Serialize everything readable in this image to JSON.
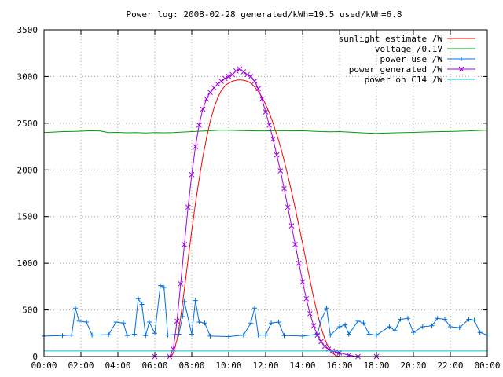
{
  "chart_data": {
    "type": "line",
    "title": "Power log: 2008-02-28 generated/kWh=19.5 used/kWh=6.8",
    "xlabel": "",
    "ylabel": "",
    "xlim": [
      0,
      24
    ],
    "ylim": [
      0,
      3500
    ],
    "x_ticks": [
      {
        "value": 0,
        "label": "00:00"
      },
      {
        "value": 2,
        "label": "02:00"
      },
      {
        "value": 4,
        "label": "04:00"
      },
      {
        "value": 6,
        "label": "06:00"
      },
      {
        "value": 8,
        "label": "08:00"
      },
      {
        "value": 10,
        "label": "10:00"
      },
      {
        "value": 12,
        "label": "12:00"
      },
      {
        "value": 14,
        "label": "14:00"
      },
      {
        "value": 16,
        "label": "16:00"
      },
      {
        "value": 18,
        "label": "18:00"
      },
      {
        "value": 20,
        "label": "20:00"
      },
      {
        "value": 22,
        "label": "22:00"
      },
      {
        "value": 24,
        "label": "00:00"
      }
    ],
    "y_ticks": [
      {
        "value": 0,
        "label": "0"
      },
      {
        "value": 500,
        "label": "500"
      },
      {
        "value": 1000,
        "label": "1000"
      },
      {
        "value": 1500,
        "label": "1500"
      },
      {
        "value": 2000,
        "label": "2000"
      },
      {
        "value": 2500,
        "label": "2500"
      },
      {
        "value": 3000,
        "label": "3000"
      },
      {
        "value": 3500,
        "label": "3500"
      }
    ],
    "grid": true,
    "legend_position": "top-right",
    "series": [
      {
        "name": "sunlight estimate /W",
        "color": "#ff0000",
        "marker": "none",
        "points": [
          [
            6.9,
            0
          ],
          [
            7.0,
            40
          ],
          [
            7.2,
            180
          ],
          [
            7.4,
            420
          ],
          [
            7.6,
            720
          ],
          [
            7.8,
            1040
          ],
          [
            8.0,
            1350
          ],
          [
            8.2,
            1640
          ],
          [
            8.4,
            1900
          ],
          [
            8.6,
            2140
          ],
          [
            8.8,
            2340
          ],
          [
            9.0,
            2520
          ],
          [
            9.2,
            2660
          ],
          [
            9.4,
            2770
          ],
          [
            9.6,
            2850
          ],
          [
            9.8,
            2900
          ],
          [
            10.0,
            2930
          ],
          [
            10.2,
            2950
          ],
          [
            10.4,
            2960
          ],
          [
            10.6,
            2965
          ],
          [
            10.8,
            2960
          ],
          [
            11.0,
            2950
          ],
          [
            11.2,
            2930
          ],
          [
            11.4,
            2890
          ],
          [
            11.6,
            2840
          ],
          [
            11.8,
            2780
          ],
          [
            12.0,
            2700
          ],
          [
            12.2,
            2610
          ],
          [
            12.4,
            2500
          ],
          [
            12.6,
            2380
          ],
          [
            12.8,
            2250
          ],
          [
            13.0,
            2100
          ],
          [
            13.2,
            1940
          ],
          [
            13.4,
            1770
          ],
          [
            13.6,
            1590
          ],
          [
            13.8,
            1400
          ],
          [
            14.0,
            1210
          ],
          [
            14.2,
            1010
          ],
          [
            14.4,
            820
          ],
          [
            14.6,
            630
          ],
          [
            14.8,
            460
          ],
          [
            15.0,
            310
          ],
          [
            15.2,
            190
          ],
          [
            15.4,
            100
          ],
          [
            15.6,
            40
          ],
          [
            15.8,
            10
          ],
          [
            16.0,
            0
          ]
        ]
      },
      {
        "name": "voltage /0.1V",
        "color": "#00a000",
        "marker": "none",
        "points": [
          [
            0.0,
            2400
          ],
          [
            0.5,
            2405
          ],
          [
            1.0,
            2410
          ],
          [
            1.5,
            2412
          ],
          [
            2.0,
            2415
          ],
          [
            2.5,
            2420
          ],
          [
            3.0,
            2418
          ],
          [
            3.5,
            2400
          ],
          [
            4.0,
            2402
          ],
          [
            4.5,
            2398
          ],
          [
            5.0,
            2400
          ],
          [
            5.5,
            2396
          ],
          [
            6.0,
            2400
          ],
          [
            6.5,
            2398
          ],
          [
            7.0,
            2400
          ],
          [
            7.5,
            2405
          ],
          [
            8.0,
            2410
          ],
          [
            8.5,
            2415
          ],
          [
            9.0,
            2420
          ],
          [
            9.5,
            2425
          ],
          [
            10.0,
            2425
          ],
          [
            10.5,
            2422
          ],
          [
            11.0,
            2420
          ],
          [
            11.5,
            2418
          ],
          [
            12.0,
            2418
          ],
          [
            12.5,
            2420
          ],
          [
            13.0,
            2420
          ],
          [
            13.5,
            2418
          ],
          [
            14.0,
            2420
          ],
          [
            14.5,
            2415
          ],
          [
            15.0,
            2410
          ],
          [
            15.5,
            2408
          ],
          [
            16.0,
            2410
          ],
          [
            16.5,
            2405
          ],
          [
            17.0,
            2400
          ],
          [
            17.5,
            2395
          ],
          [
            18.0,
            2392
          ],
          [
            18.5,
            2395
          ],
          [
            19.0,
            2398
          ],
          [
            19.5,
            2400
          ],
          [
            20.0,
            2402
          ],
          [
            20.5,
            2405
          ],
          [
            21.0,
            2408
          ],
          [
            21.5,
            2410
          ],
          [
            22.0,
            2412
          ],
          [
            22.5,
            2415
          ],
          [
            23.0,
            2418
          ],
          [
            23.5,
            2422
          ],
          [
            24.0,
            2425
          ]
        ]
      },
      {
        "name": "power use /W",
        "color": "#0070e0",
        "marker": "plus",
        "points": [
          [
            0.0,
            220
          ],
          [
            1.0,
            225
          ],
          [
            1.5,
            230
          ],
          [
            1.7,
            520
          ],
          [
            1.9,
            380
          ],
          [
            2.3,
            370
          ],
          [
            2.6,
            230
          ],
          [
            3.5,
            235
          ],
          [
            3.9,
            370
          ],
          [
            4.3,
            360
          ],
          [
            4.5,
            225
          ],
          [
            4.9,
            240
          ],
          [
            5.1,
            620
          ],
          [
            5.3,
            560
          ],
          [
            5.5,
            225
          ],
          [
            5.7,
            370
          ],
          [
            6.0,
            250
          ],
          [
            6.3,
            760
          ],
          [
            6.5,
            740
          ],
          [
            6.7,
            230
          ],
          [
            7.3,
            240
          ],
          [
            7.5,
            430
          ],
          [
            7.6,
            590
          ],
          [
            8.0,
            240
          ],
          [
            8.2,
            600
          ],
          [
            8.4,
            370
          ],
          [
            8.7,
            360
          ],
          [
            9.0,
            220
          ],
          [
            10.0,
            215
          ],
          [
            10.8,
            230
          ],
          [
            11.2,
            360
          ],
          [
            11.4,
            520
          ],
          [
            11.6,
            230
          ],
          [
            12.0,
            230
          ],
          [
            12.3,
            360
          ],
          [
            12.7,
            370
          ],
          [
            13.0,
            225
          ],
          [
            14.0,
            220
          ],
          [
            14.8,
            240
          ],
          [
            15.0,
            390
          ],
          [
            15.3,
            520
          ],
          [
            15.5,
            230
          ],
          [
            16.0,
            320
          ],
          [
            16.3,
            340
          ],
          [
            16.5,
            240
          ],
          [
            17.0,
            380
          ],
          [
            17.3,
            360
          ],
          [
            17.6,
            240
          ],
          [
            18.0,
            230
          ],
          [
            18.7,
            320
          ],
          [
            19.0,
            280
          ],
          [
            19.3,
            400
          ],
          [
            19.7,
            410
          ],
          [
            20.0,
            260
          ],
          [
            20.5,
            320
          ],
          [
            21.0,
            330
          ],
          [
            21.3,
            410
          ],
          [
            21.7,
            400
          ],
          [
            22.0,
            320
          ],
          [
            22.5,
            310
          ],
          [
            23.0,
            400
          ],
          [
            23.3,
            390
          ],
          [
            23.6,
            260
          ],
          [
            24.0,
            230
          ]
        ]
      },
      {
        "name": "power generated /W",
        "color": "#a000e0",
        "marker": "cross",
        "points": [
          [
            6.0,
            0
          ],
          [
            6.8,
            0
          ],
          [
            7.0,
            80
          ],
          [
            7.2,
            380
          ],
          [
            7.4,
            780
          ],
          [
            7.6,
            1200
          ],
          [
            7.8,
            1600
          ],
          [
            8.0,
            1950
          ],
          [
            8.2,
            2250
          ],
          [
            8.4,
            2480
          ],
          [
            8.6,
            2650
          ],
          [
            8.8,
            2760
          ],
          [
            9.0,
            2830
          ],
          [
            9.2,
            2880
          ],
          [
            9.4,
            2920
          ],
          [
            9.6,
            2950
          ],
          [
            9.8,
            2980
          ],
          [
            10.0,
            3000
          ],
          [
            10.2,
            3020
          ],
          [
            10.4,
            3060
          ],
          [
            10.6,
            3080
          ],
          [
            10.8,
            3050
          ],
          [
            11.0,
            3020
          ],
          [
            11.2,
            3000
          ],
          [
            11.4,
            2950
          ],
          [
            11.6,
            2870
          ],
          [
            11.8,
            2760
          ],
          [
            12.0,
            2620
          ],
          [
            12.2,
            2480
          ],
          [
            12.4,
            2330
          ],
          [
            12.6,
            2160
          ],
          [
            12.8,
            1990
          ],
          [
            13.0,
            1800
          ],
          [
            13.2,
            1600
          ],
          [
            13.4,
            1400
          ],
          [
            13.6,
            1200
          ],
          [
            13.8,
            1000
          ],
          [
            14.0,
            800
          ],
          [
            14.2,
            620
          ],
          [
            14.4,
            460
          ],
          [
            14.6,
            330
          ],
          [
            14.8,
            230
          ],
          [
            15.0,
            160
          ],
          [
            15.2,
            110
          ],
          [
            15.4,
            80
          ],
          [
            15.6,
            60
          ],
          [
            15.8,
            50
          ],
          [
            16.0,
            40
          ],
          [
            16.5,
            15
          ],
          [
            17.0,
            0
          ],
          [
            18.0,
            0
          ]
        ]
      },
      {
        "name": "power on C14 /W",
        "color": "#00c8c8",
        "marker": "none",
        "points": [
          [
            0.0,
            60
          ],
          [
            2.0,
            60
          ],
          [
            4.0,
            60
          ],
          [
            6.0,
            60
          ],
          [
            8.0,
            60
          ],
          [
            10.0,
            60
          ],
          [
            12.0,
            60
          ],
          [
            14.0,
            60
          ],
          [
            16.0,
            60
          ],
          [
            18.0,
            60
          ],
          [
            20.0,
            60
          ],
          [
            22.0,
            60
          ],
          [
            24.0,
            60
          ]
        ]
      }
    ]
  }
}
